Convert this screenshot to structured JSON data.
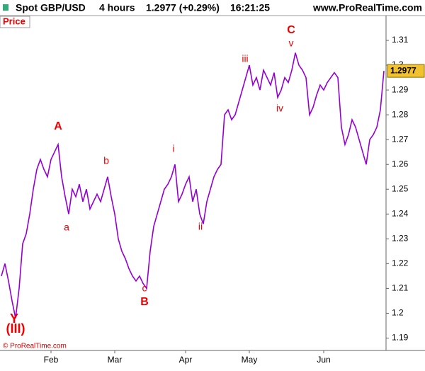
{
  "header": {
    "symbol": "Spot GBP/USD",
    "period": "4 hours",
    "quote": "1.2977 (+0.29%)",
    "time": "16:21:25",
    "site": "www.ProRealTime.com",
    "panel": "Price",
    "copyright": "© ProRealTime.com"
  },
  "chart_data": {
    "type": "line",
    "categories": [
      null,
      null,
      null,
      null,
      null,
      null,
      null,
      null,
      null,
      null,
      null,
      null,
      null,
      null,
      "Feb",
      null,
      null,
      null,
      null,
      null,
      null,
      null,
      null,
      null,
      null,
      null,
      null,
      null,
      null,
      null,
      null,
      null,
      "Mar",
      null,
      null,
      null,
      null,
      null,
      null,
      null,
      null,
      null,
      null,
      null,
      null,
      null,
      null,
      null,
      null,
      null,
      null,
      null,
      "Apr",
      null,
      null,
      null,
      null,
      null,
      null,
      null,
      null,
      null,
      null,
      null,
      null,
      null,
      null,
      null,
      null,
      null,
      "May",
      null,
      null,
      null,
      null,
      null,
      null,
      null,
      null,
      null,
      null,
      null,
      null,
      null,
      null,
      null,
      null,
      null,
      null,
      null,
      null,
      "Jun",
      null,
      null,
      null,
      null,
      null,
      null,
      null,
      null,
      null,
      null,
      null,
      null,
      null,
      null,
      null,
      null,
      null
    ],
    "series": [
      {
        "name": "Spot GBP/USD",
        "color": "#9400d3",
        "values": [
          1.215,
          1.22,
          1.213,
          1.205,
          1.198,
          1.21,
          1.228,
          1.232,
          1.24,
          1.25,
          1.258,
          1.262,
          1.258,
          1.255,
          1.262,
          1.265,
          1.268,
          1.255,
          1.247,
          1.24,
          1.25,
          1.247,
          1.252,
          1.245,
          1.25,
          1.242,
          1.245,
          1.248,
          1.245,
          1.25,
          1.255,
          1.247,
          1.24,
          1.23,
          1.225,
          1.222,
          1.218,
          1.215,
          1.213,
          1.215,
          1.212,
          1.21,
          1.225,
          1.235,
          1.24,
          1.245,
          1.25,
          1.252,
          1.255,
          1.26,
          1.245,
          1.248,
          1.252,
          1.255,
          1.245,
          1.25,
          1.24,
          1.236,
          1.245,
          1.25,
          1.255,
          1.258,
          1.26,
          1.28,
          1.282,
          1.278,
          1.28,
          1.285,
          1.29,
          1.295,
          1.3,
          1.292,
          1.295,
          1.29,
          1.298,
          1.295,
          1.292,
          1.297,
          1.287,
          1.29,
          1.295,
          1.293,
          1.298,
          1.305,
          1.3,
          1.298,
          1.295,
          1.28,
          1.283,
          1.288,
          1.292,
          1.29,
          1.293,
          1.295,
          1.297,
          1.295,
          1.275,
          1.268,
          1.272,
          1.278,
          1.275,
          1.27,
          1.265,
          1.26,
          1.27,
          1.272,
          1.275,
          1.282,
          1.2977
        ]
      }
    ],
    "ylim": [
      1.185,
      1.32
    ],
    "yticks": [
      1.19,
      1.2,
      1.21,
      1.22,
      1.23,
      1.24,
      1.25,
      1.26,
      1.27,
      1.28,
      1.29,
      1.3,
      1.31
    ],
    "last_price": 1.2977,
    "annotations": [
      "(III)",
      "Y",
      "A",
      "a",
      "b",
      "c",
      "B",
      "i",
      "ii",
      "iii",
      "iv",
      "C",
      "v"
    ]
  }
}
